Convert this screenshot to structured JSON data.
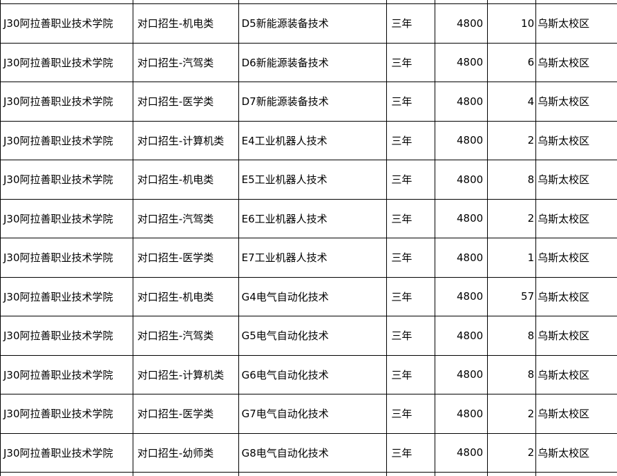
{
  "table": {
    "columns": [
      "college",
      "category",
      "major",
      "duration",
      "tuition",
      "count",
      "campus"
    ],
    "rows": [
      {
        "college": "J30阿拉善职业技术学院",
        "category": "对口招生-机电类",
        "major": "D5新能源装备技术",
        "duration": "三年",
        "tuition": "4800",
        "count": "10",
        "campus": "乌斯太校区"
      },
      {
        "college": "J30阿拉善职业技术学院",
        "category": "对口招生-汽驾类",
        "major": "D6新能源装备技术",
        "duration": "三年",
        "tuition": "4800",
        "count": "6",
        "campus": "乌斯太校区"
      },
      {
        "college": "J30阿拉善职业技术学院",
        "category": "对口招生-医学类",
        "major": "D7新能源装备技术",
        "duration": "三年",
        "tuition": "4800",
        "count": "4",
        "campus": "乌斯太校区"
      },
      {
        "college": "J30阿拉善职业技术学院",
        "category": "对口招生-计算机类",
        "major": "E4工业机器人技术",
        "duration": "三年",
        "tuition": "4800",
        "count": "2",
        "campus": "乌斯太校区"
      },
      {
        "college": "J30阿拉善职业技术学院",
        "category": "对口招生-机电类",
        "major": "E5工业机器人技术",
        "duration": "三年",
        "tuition": "4800",
        "count": "8",
        "campus": "乌斯太校区"
      },
      {
        "college": "J30阿拉善职业技术学院",
        "category": "对口招生-汽驾类",
        "major": "E6工业机器人技术",
        "duration": "三年",
        "tuition": "4800",
        "count": "2",
        "campus": "乌斯太校区"
      },
      {
        "college": "J30阿拉善职业技术学院",
        "category": "对口招生-医学类",
        "major": "E7工业机器人技术",
        "duration": "三年",
        "tuition": "4800",
        "count": "1",
        "campus": "乌斯太校区"
      },
      {
        "college": "J30阿拉善职业技术学院",
        "category": "对口招生-机电类",
        "major": "G4电气自动化技术",
        "duration": "三年",
        "tuition": "4800",
        "count": "57",
        "campus": "乌斯太校区"
      },
      {
        "college": "J30阿拉善职业技术学院",
        "category": "对口招生-汽驾类",
        "major": "G5电气自动化技术",
        "duration": "三年",
        "tuition": "4800",
        "count": "8",
        "campus": "乌斯太校区"
      },
      {
        "college": "J30阿拉善职业技术学院",
        "category": "对口招生-计算机类",
        "major": "G6电气自动化技术",
        "duration": "三年",
        "tuition": "4800",
        "count": "8",
        "campus": "乌斯太校区"
      },
      {
        "college": "J30阿拉善职业技术学院",
        "category": "对口招生-医学类",
        "major": "G7电气自动化技术",
        "duration": "三年",
        "tuition": "4800",
        "count": "2",
        "campus": "乌斯太校区"
      },
      {
        "college": "J30阿拉善职业技术学院",
        "category": "对口招生-幼师类",
        "major": "G8电气自动化技术",
        "duration": "三年",
        "tuition": "4800",
        "count": "2",
        "campus": "乌斯太校区"
      }
    ],
    "colors": {
      "border": "#000000",
      "text": "#000000",
      "background": "#ffffff"
    }
  }
}
